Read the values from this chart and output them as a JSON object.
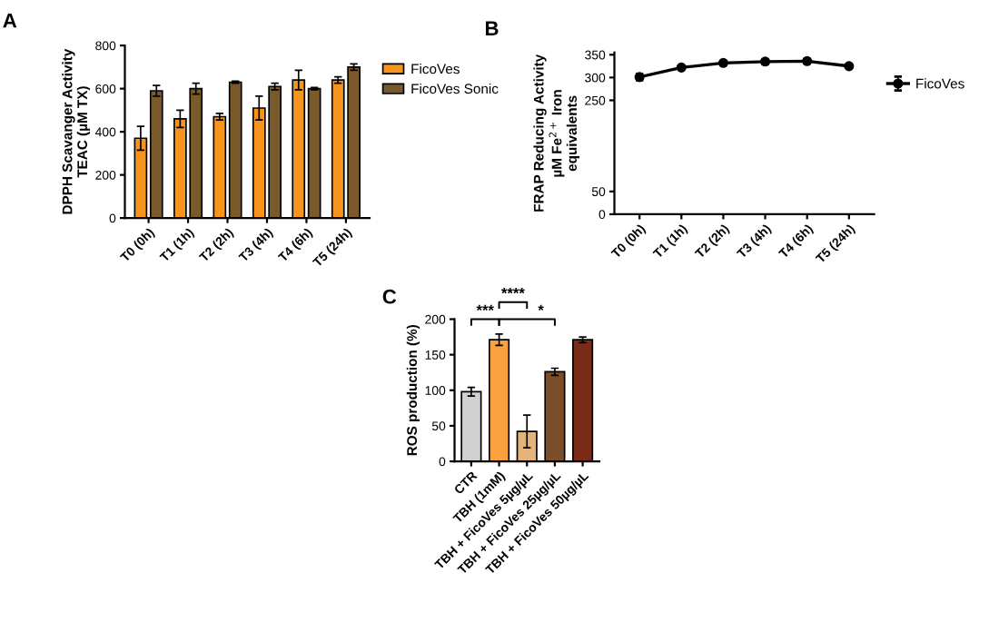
{
  "chart_data": [
    {
      "type": "bar",
      "title": "A",
      "ylabel": "DPPH Scavanger Activity\nTEAC (µM TX)",
      "categories": [
        "T0 (0h)",
        "T1 (1h)",
        "T2 (2h)",
        "T3 (4h)",
        "T4 (6h)",
        "T5 (24h)"
      ],
      "series": [
        {
          "name": "FicoVes",
          "color": "#f7941d",
          "values": [
            370,
            460,
            470,
            510,
            640,
            640
          ],
          "errors": [
            55,
            40,
            15,
            55,
            45,
            15
          ]
        },
        {
          "name": "FicoVes Sonic",
          "color": "#7a5a2a",
          "values": [
            590,
            600,
            630,
            610,
            600,
            700
          ],
          "errors": [
            25,
            25,
            5,
            15,
            5,
            15
          ]
        }
      ],
      "ylim": [
        0,
        800
      ],
      "yticks": [
        0,
        200,
        400,
        600,
        800
      ],
      "legend": "right",
      "grid": false
    },
    {
      "type": "line",
      "title": "B",
      "ylabel": "FRAP Reducing Activity\nµM Fe$^{2+}$ Iron\nequivalents",
      "categories": [
        "T0 (0h)",
        "T1 (1h)",
        "T2 (2h)",
        "T3 (4h)",
        "T4 (6h)",
        "T5 (24h)"
      ],
      "series": [
        {
          "name": "FicoVes",
          "color": "#000000",
          "values": [
            301,
            322,
            332,
            335,
            336,
            325
          ],
          "errors": [
            7,
            4,
            4,
            5,
            5,
            3
          ]
        }
      ],
      "ylim": [
        0,
        355
      ],
      "yticks": [
        0,
        50,
        250,
        300,
        350
      ],
      "marker": "circle",
      "line_style": "solid",
      "legend": "right",
      "grid": false
    },
    {
      "type": "bar",
      "title": "C",
      "ylabel": "ROS production (%)",
      "categories": [
        "CTR",
        "TBH (1mM)",
        "TBH + FicoVes 5µg/µL",
        "TBH + FicoVes 25µg/µL",
        "TBH + FicoVes 50µg/µL"
      ],
      "values": [
        98,
        171,
        42,
        126,
        171
      ],
      "errors": [
        6,
        8,
        23,
        5,
        4
      ],
      "colors": [
        "#d0d0d0",
        "#f9a03f",
        "#e6b47a",
        "#7a4e2a",
        "#7b2c18"
      ],
      "ylim": [
        0,
        200
      ],
      "yticks": [
        0,
        50,
        100,
        150,
        200
      ],
      "annotations": [
        "***",
        "****",
        "*"
      ],
      "grid": false
    }
  ]
}
